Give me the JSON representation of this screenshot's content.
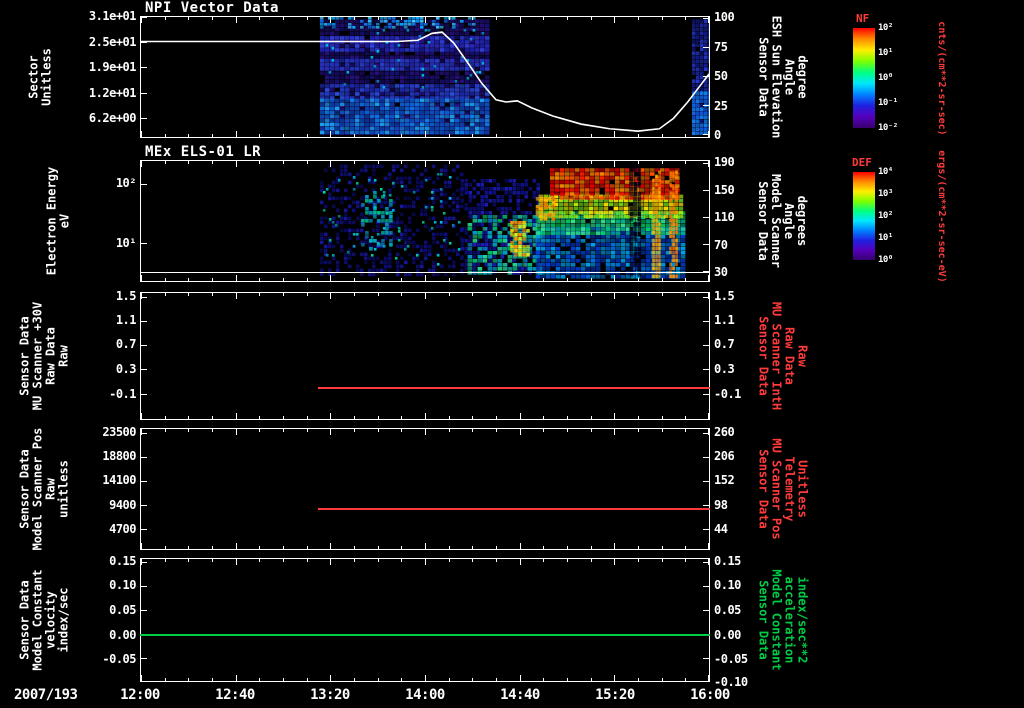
{
  "window": {
    "bg": "#000000",
    "fg": "#ffffff",
    "accent_red": "#ff3b3b",
    "accent_green": "#00cc44"
  },
  "xaxis": {
    "date_label": "2007/193",
    "ticks": [
      "12:00",
      "12:40",
      "13:20",
      "14:00",
      "14:40",
      "15:20",
      "16:00"
    ]
  },
  "colorbars": [
    {
      "title": "NF",
      "unit": "cnts/(cm**2-sr-sec)",
      "ticks": [
        "10²",
        "10¹",
        "10⁰",
        "10⁻¹",
        "10⁻²"
      ],
      "gradient": [
        "#ff0000",
        "#ff8c00",
        "#ffee00",
        "#7dff00",
        "#00ff80",
        "#00e8ff",
        "#0080ff",
        "#2020e0",
        "#5500bb",
        "#38006e"
      ]
    },
    {
      "title": "DEF",
      "unit": "ergs/(cm**2-sr-sec-eV)",
      "ticks": [
        "10⁴",
        "10³",
        "10²",
        "10¹",
        "10⁰"
      ],
      "gradient": [
        "#ff0000",
        "#ff8c00",
        "#ffee00",
        "#7dff00",
        "#00ff80",
        "#00e8ff",
        "#0080ff",
        "#2020e0",
        "#5500bb",
        "#38006e"
      ]
    }
  ],
  "panels": [
    {
      "id": "npi",
      "title": "NPI Vector Data",
      "left_title": [
        "Sector",
        "Unitless"
      ],
      "left_ticks": [
        {
          "t": "3.1e+01",
          "f": 0.0
        },
        {
          "t": "2.5e+01",
          "f": 0.21
        },
        {
          "t": "1.9e+01",
          "f": 0.42
        },
        {
          "t": "1.2e+01",
          "f": 0.63
        },
        {
          "t": "6.2e+00",
          "f": 0.84
        }
      ],
      "right_ticks": [
        {
          "t": "100",
          "f": 0.01
        },
        {
          "t": "75",
          "f": 0.25
        },
        {
          "t": "50",
          "f": 0.49
        },
        {
          "t": "25",
          "f": 0.735
        },
        {
          "t": "0",
          "f": 0.975
        }
      ],
      "right_title": [
        "Sensor Data",
        "ESH Sun Elevation",
        "Angle",
        "degree"
      ],
      "right_title_color": "#ffffff"
    },
    {
      "id": "els",
      "title": "MEx ELS-01 LR",
      "left_title": [
        "Electron Energy",
        "eV"
      ],
      "left_ticks": [
        {
          "t": "10²",
          "f": 0.19
        },
        {
          "t": "10¹",
          "f": 0.68
        }
      ],
      "right_ticks": [
        {
          "t": "190",
          "f": 0.02
        },
        {
          "t": "150",
          "f": 0.245
        },
        {
          "t": "110",
          "f": 0.47
        },
        {
          "t": "70",
          "f": 0.695
        },
        {
          "t": "30",
          "f": 0.92
        }
      ],
      "right_title": [
        "Sensor Data",
        "Model Scanner",
        "Angle",
        "degrees"
      ],
      "right_title_color": "#ffffff"
    },
    {
      "id": "mu-30v",
      "title": "",
      "left_title": [
        "Sensor Data",
        "MU Scanner +30V",
        "Raw Data",
        "Raw"
      ],
      "left_ticks": [
        {
          "t": "1.5",
          "f": 0.03
        },
        {
          "t": "1.1",
          "f": 0.22
        },
        {
          "t": "0.7",
          "f": 0.41
        },
        {
          "t": "0.3",
          "f": 0.6
        },
        {
          "t": "-0.1",
          "f": 0.8
        }
      ],
      "right_ticks": [
        {
          "t": "1.5",
          "f": 0.03
        },
        {
          "t": "1.1",
          "f": 0.22
        },
        {
          "t": "0.7",
          "f": 0.41
        },
        {
          "t": "0.3",
          "f": 0.6
        },
        {
          "t": "-0.1",
          "f": 0.8
        }
      ],
      "right_title": [
        "Sensor Data",
        "MU Scanner IntH",
        "Raw Data",
        "Raw"
      ],
      "right_title_color": "#ff3b3b"
    },
    {
      "id": "scanner-pos",
      "title": "",
      "left_title": [
        "Sensor Data",
        "Model Scanner Pos",
        "Raw",
        "unitless"
      ],
      "left_ticks": [
        {
          "t": "23500",
          "f": 0.03
        },
        {
          "t": "18800",
          "f": 0.23
        },
        {
          "t": "14100",
          "f": 0.43
        },
        {
          "t": "9400",
          "f": 0.63
        },
        {
          "t": "4700",
          "f": 0.83
        }
      ],
      "right_ticks": [
        {
          "t": "260",
          "f": 0.03
        },
        {
          "t": "206",
          "f": 0.23
        },
        {
          "t": "152",
          "f": 0.43
        },
        {
          "t": "98",
          "f": 0.63
        },
        {
          "t": "44",
          "f": 0.83
        }
      ],
      "right_title": [
        "Sensor Data",
        "MU Scanner Pos",
        "Telemetry",
        "Unitless"
      ],
      "right_title_color": "#ff3b3b"
    },
    {
      "id": "model-constant",
      "title": "",
      "left_title": [
        "Sensor Data",
        "Model Constant",
        "velocity",
        "index/sec"
      ],
      "left_ticks": [
        {
          "t": "0.15",
          "f": 0.025
        },
        {
          "t": "0.10",
          "f": 0.22
        },
        {
          "t": "0.05",
          "f": 0.42
        },
        {
          "t": "0.00",
          "f": 0.62
        },
        {
          "t": "-0.05",
          "f": 0.815
        }
      ],
      "right_ticks": [
        {
          "t": "0.15",
          "f": 0.025
        },
        {
          "t": "0.10",
          "f": 0.22
        },
        {
          "t": "0.05",
          "f": 0.42
        },
        {
          "t": "0.00",
          "f": 0.62
        },
        {
          "t": "-0.05",
          "f": 0.815
        },
        {
          "t": "-0.10",
          "f": 1.0
        }
      ],
      "right_title": [
        "Sensor Data",
        "Model Constant",
        "acceleration",
        "index/sec**2"
      ],
      "right_title_color": "#00cc44"
    }
  ],
  "chart_data": [
    {
      "type": "heatmap",
      "title": "NPI Vector Data",
      "x_range_hours_after_1200": [
        0,
        4
      ],
      "ylabel": "Sector (Unitless)",
      "y_ticks": [
        31,
        25,
        19,
        12,
        6.2
      ],
      "colorbar": "NF cnts/(cm**2-sr-sec) 10^2..10^-2",
      "blocks": [
        {
          "t": [
            1.26,
            2.45
          ],
          "f": [
            0.02,
            0.98
          ],
          "colors": [
            "#1b0b66",
            "#27107e",
            "#150f70"
          ],
          "d": 0.92,
          "cell": [
            5,
            4
          ]
        },
        {
          "t": [
            1.26,
            2.34
          ],
          "f": [
            0.0,
            0.08
          ],
          "colors": [
            "#00aaff",
            "#38c8ff",
            "#0c78e8"
          ],
          "d": 0.55,
          "cell": [
            4,
            3
          ]
        },
        {
          "t": [
            1.26,
            2.45
          ],
          "f": [
            0.16,
            0.29
          ],
          "colors": [
            "#2a30cc",
            "#3344dd",
            "#1b22aa"
          ],
          "d": 0.85,
          "cell": [
            5,
            4
          ]
        },
        {
          "t": [
            1.26,
            2.45
          ],
          "f": [
            0.35,
            0.43
          ],
          "colors": [
            "#2333bb",
            "#2a3fd0"
          ],
          "d": 0.8,
          "cell": [
            5,
            4
          ]
        },
        {
          "t": [
            1.26,
            2.45
          ],
          "f": [
            0.56,
            0.68
          ],
          "colors": [
            "#2440cc",
            "#2c52e0",
            "#1b2fae"
          ],
          "d": 0.82,
          "cell": [
            5,
            4
          ]
        },
        {
          "t": [
            1.26,
            2.43
          ],
          "f": [
            0.68,
            0.97
          ],
          "colors": [
            "#0b5fd6",
            "#0e79e8",
            "#19a0f0",
            "#0947b0"
          ],
          "d": 0.95,
          "cell": [
            5,
            4
          ]
        },
        {
          "t": [
            1.3,
            2.4
          ],
          "f": [
            0.05,
            0.6
          ],
          "colors": [
            "#00c8e8"
          ],
          "d": 0.05,
          "cell": [
            3,
            3
          ]
        },
        {
          "t": [
            3.88,
            4.0
          ],
          "f": [
            0.02,
            0.98
          ],
          "colors": [
            "#1d2bb0",
            "#2438cc",
            "#101a8c"
          ],
          "d": 0.95,
          "cell": [
            4,
            4
          ]
        },
        {
          "t": [
            3.88,
            4.0
          ],
          "f": [
            0.62,
            0.97
          ],
          "colors": [
            "#0b5fd6",
            "#1080e8"
          ],
          "d": 0.9,
          "cell": [
            4,
            4
          ]
        }
      ],
      "overlay_line": {
        "name": "ESH Sun Elevation Angle (degree)",
        "range": [
          0,
          100
        ],
        "points": [
          [
            0,
            80
          ],
          [
            0.5,
            80
          ],
          [
            1.0,
            80
          ],
          [
            1.5,
            80
          ],
          [
            1.8,
            80
          ],
          [
            1.95,
            81
          ],
          [
            2.05,
            87
          ],
          [
            2.12,
            88
          ],
          [
            2.2,
            79
          ],
          [
            2.3,
            62
          ],
          [
            2.4,
            44
          ],
          [
            2.5,
            30
          ],
          [
            2.57,
            28
          ],
          [
            2.65,
            29
          ],
          [
            2.75,
            23
          ],
          [
            2.9,
            16
          ],
          [
            3.1,
            9
          ],
          [
            3.3,
            5
          ],
          [
            3.5,
            3
          ],
          [
            3.65,
            5
          ],
          [
            3.75,
            14
          ],
          [
            3.85,
            28
          ],
          [
            3.95,
            44
          ],
          [
            4.0,
            52
          ]
        ]
      }
    },
    {
      "type": "heatmap",
      "title": "MEx ELS-01 LR",
      "x_range_hours_after_1200": [
        0,
        4
      ],
      "ylabel": "Electron Energy (eV)",
      "yscale": "log",
      "y_ticks": [
        100,
        10
      ],
      "colorbar": "DEF ergs/(cm**2-sr-sec-eV) 10^4..10^0",
      "baseline_f": 0.92,
      "blocks": [
        {
          "t": [
            1.26,
            2.25
          ],
          "f": [
            0.03,
            0.95
          ],
          "colors": [
            "#0d0d7a",
            "#16169a",
            "#0a0a5e"
          ],
          "d": 0.4,
          "cell": [
            4,
            4
          ]
        },
        {
          "t": [
            1.26,
            2.25
          ],
          "f": [
            0.1,
            0.9
          ],
          "colors": [
            "#00c8e8",
            "#00d6a0"
          ],
          "d": 0.05,
          "cell": [
            3,
            3
          ]
        },
        {
          "t": [
            1.55,
            1.75
          ],
          "f": [
            0.25,
            0.75
          ],
          "colors": [
            "#00b8d0",
            "#00d6a0",
            "#1196d0"
          ],
          "d": 0.45,
          "cell": [
            4,
            4
          ]
        },
        {
          "t": [
            2.25,
            2.8
          ],
          "f": [
            0.15,
            0.95
          ],
          "colors": [
            "#12129a",
            "#1c1cba",
            "#0d0d7a"
          ],
          "d": 0.6,
          "cell": [
            4,
            4
          ]
        },
        {
          "t": [
            2.3,
            2.8
          ],
          "f": [
            0.45,
            0.92
          ],
          "colors": [
            "#00c060",
            "#25d585",
            "#00a8b8"
          ],
          "d": 0.6,
          "cell": [
            5,
            4
          ]
        },
        {
          "t": [
            2.6,
            2.73
          ],
          "f": [
            0.5,
            0.8
          ],
          "colors": [
            "#ffd000",
            "#ff9000",
            "#d8f020"
          ],
          "d": 0.8,
          "cell": [
            4,
            4
          ]
        },
        {
          "t": [
            2.78,
            3.82
          ],
          "f": [
            0.55,
            0.97
          ],
          "colors": [
            "#0040d0",
            "#0070e0",
            "#00a0e8",
            "#0030a8"
          ],
          "d": 0.92,
          "cell": [
            5,
            4
          ]
        },
        {
          "t": [
            2.78,
            3.82
          ],
          "f": [
            0.42,
            0.6
          ],
          "colors": [
            "#00d060",
            "#32e388",
            "#00b890"
          ],
          "d": 0.95,
          "cell": [
            5,
            4
          ]
        },
        {
          "t": [
            2.8,
            3.8
          ],
          "f": [
            0.28,
            0.46
          ],
          "colors": [
            "#b8f000",
            "#ffe400",
            "#76e020"
          ],
          "d": 0.95,
          "cell": [
            5,
            4
          ]
        },
        {
          "t": [
            2.88,
            3.78
          ],
          "f": [
            0.06,
            0.3
          ],
          "colors": [
            "#ff1c00",
            "#ff5400",
            "#ff8800",
            "#e60000"
          ],
          "d": 0.96,
          "cell": [
            5,
            4
          ]
        },
        {
          "t": [
            2.78,
            2.92
          ],
          "f": [
            0.3,
            0.5
          ],
          "colors": [
            "#ff7800",
            "#ffb000"
          ],
          "d": 0.7,
          "cell": [
            4,
            4
          ]
        },
        {
          "t": [
            3.44,
            3.5
          ],
          "f": [
            0.05,
            0.95
          ],
          "colors": [
            "#000014"
          ],
          "d": 0.75,
          "cell": [
            4,
            5
          ]
        },
        {
          "t": [
            3.6,
            3.66
          ],
          "f": [
            0.08,
            0.95
          ],
          "colors": [
            "#ff9400",
            "#ffb400"
          ],
          "d": 0.85,
          "cell": [
            3,
            4
          ]
        },
        {
          "t": [
            3.72,
            3.78
          ],
          "f": [
            0.08,
            0.95
          ],
          "colors": [
            "#ff9400",
            "#ff7400"
          ],
          "d": 0.85,
          "cell": [
            3,
            4
          ]
        }
      ]
    },
    {
      "type": "line",
      "series": "MU Scanner +30V Raw Data (Raw)",
      "color": "#ff3b3b",
      "value": 0.0,
      "t_start_hours": 1.25,
      "t_end_hours": 4.0,
      "y_ticks": [
        1.5,
        1.1,
        0.7,
        0.3,
        -0.1
      ]
    },
    {
      "type": "line",
      "series": "Model Scanner Pos Raw (unitless)",
      "color": "#ff3b3b",
      "value": 8500,
      "t_start_hours": 1.25,
      "t_end_hours": 4.0,
      "y_ticks": [
        23500,
        18800,
        14100,
        9400,
        4700
      ]
    },
    {
      "type": "line",
      "series": "Model Constant velocity (index/sec)",
      "color": "#00cc44",
      "value": 0.0,
      "t_start_hours": 0.0,
      "t_end_hours": 4.0,
      "y_ticks": [
        0.15,
        0.1,
        0.05,
        0.0,
        -0.05
      ]
    }
  ]
}
